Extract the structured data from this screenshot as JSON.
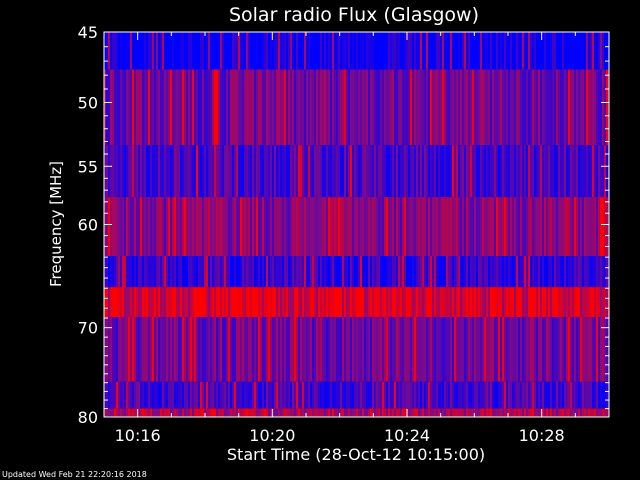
{
  "chart_data": {
    "type": "heatmap",
    "title": "Solar radio Flux (Glasgow)",
    "xlabel": "Start Time (28-Oct-12 10:15:00)",
    "ylabel": "Frequency [MHz]",
    "x_ticks": [
      "10:16",
      "10:20",
      "10:24",
      "10:28"
    ],
    "x_tick_minutes": [
      1,
      5,
      9,
      13
    ],
    "xlim_minutes": [
      0,
      15
    ],
    "y_ticks": [
      45,
      50,
      55,
      60,
      70,
      80
    ],
    "ylim": [
      45,
      80
    ],
    "y_scale": "log",
    "colors": {
      "low": "#0000ff",
      "mid": "#7a0a8c",
      "high": "#ff0000",
      "bg": "#000000"
    },
    "bands": [
      {
        "from": 45,
        "to": 47.6,
        "level": 0.05
      },
      {
        "from": 47.6,
        "to": 53.3,
        "level": 0.45
      },
      {
        "from": 53.3,
        "to": 57.6,
        "level": 0.3
      },
      {
        "from": 57.6,
        "to": 62.9,
        "level": 0.55
      },
      {
        "from": 62.9,
        "to": 65.9,
        "level": 0.2
      },
      {
        "from": 65.9,
        "to": 68.9,
        "level": 0.85
      },
      {
        "from": 68.9,
        "to": 75.9,
        "level": 0.45
      },
      {
        "from": 75.9,
        "to": 79.0,
        "level": 0.3
      },
      {
        "from": 79.0,
        "to": 80,
        "level": 0.7
      }
    ]
  },
  "footer": {
    "updated": "Updated Wed Feb 21 22:20:16 2018"
  }
}
